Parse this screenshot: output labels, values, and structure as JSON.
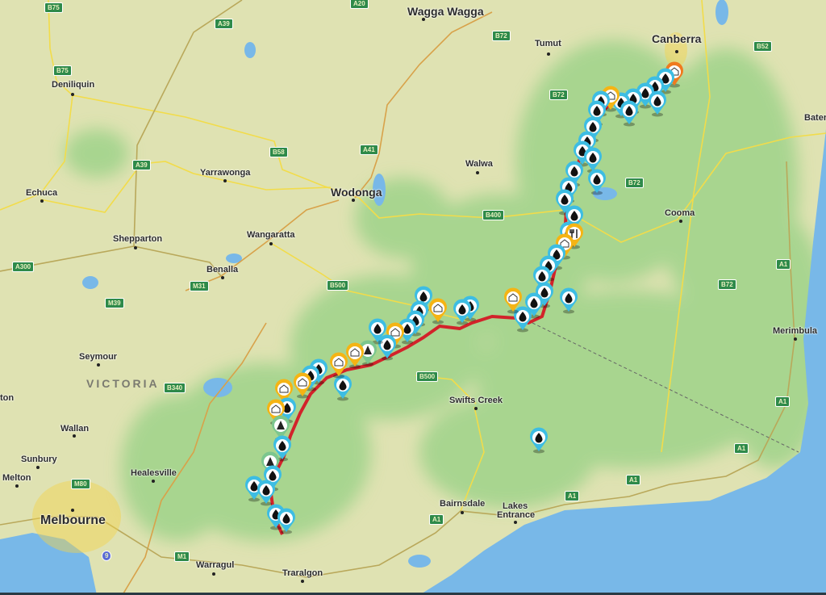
{
  "map": {
    "region_label": "VICTORIA",
    "towns": [
      "Wagga Wagga",
      "Canberra",
      "Tumut",
      "Deniliquin",
      "Echuca",
      "Yarrawonga",
      "Wodonga",
      "Walwa",
      "Cooma",
      "Shepparton",
      "Wangaratta",
      "Benalla",
      "Bater",
      "Merimbula",
      "Swifts Creek",
      "Seymour",
      "ton",
      "Wallan",
      "Sunbury",
      "Melton",
      "Healesville",
      "Melbourne",
      "Warragul",
      "Traralgon",
      "Bairnsdale",
      "Lakes",
      "Entrance"
    ],
    "road_shields": [
      "B75",
      "B75",
      "A39",
      "A39",
      "B58",
      "A41",
      "A20",
      "B72",
      "B72",
      "B72",
      "B400",
      "B52",
      "A1",
      "B72",
      "A300",
      "M39",
      "M31",
      "B500",
      "B500",
      "B340",
      "M80",
      "M1",
      "A1",
      "A1",
      "A1",
      "A1",
      "A1",
      "9"
    ],
    "marker_types": [
      "water",
      "campsite",
      "hut",
      "food",
      "trailhead"
    ],
    "colors": {
      "route": "#d2232a",
      "water_marker": "#3dbde3",
      "hut_marker": "#f5b414",
      "camp_marker": "#7cc68e",
      "land": "#dfe2b2",
      "sea": "#78b8e8"
    }
  }
}
